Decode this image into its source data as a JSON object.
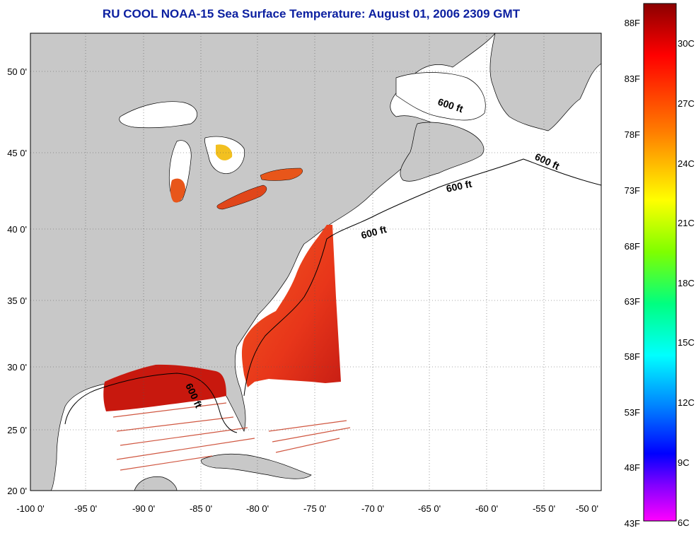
{
  "title": "RU COOL  NOAA-15  Sea Surface Temperature:  August 01, 2006 2309 GMT",
  "map": {
    "longitude_ticks": [
      "-100 0'",
      "-95 0'",
      "-90 0'",
      "-85 0'",
      "-80 0'",
      "-75 0'",
      "-70 0'",
      "-65 0'",
      "-60 0'",
      "-55 0'",
      "-50 0'"
    ],
    "latitude_ticks": [
      "20 0'",
      "25 0'",
      "30 0'",
      "35 0'",
      "40 0'",
      "45 0'",
      "50 0'"
    ],
    "isobath_labels": [
      "600 ft",
      "600 ft",
      "600 ft",
      "600 ft",
      "600 ft"
    ],
    "colors": {
      "land": "#c8c8c8",
      "water_no_data": "#ffffff",
      "warm_sst": "#e62a12",
      "hot_sst": "#b0100c"
    }
  },
  "colorbar": {
    "fahrenheit_ticks": [
      "88F",
      "83F",
      "78F",
      "73F",
      "68F",
      "63F",
      "58F",
      "53F",
      "48F",
      "43F"
    ],
    "celsius_ticks": [
      "30C",
      "27C",
      "24C",
      "21C",
      "18C",
      "15C",
      "12C",
      "9C",
      "6C"
    ],
    "gradient_colors": [
      "#8b0000",
      "#ff0000",
      "#ff7f00",
      "#ffff00",
      "#7fff00",
      "#00ff80",
      "#00ffff",
      "#0080ff",
      "#0000ff",
      "#8000ff",
      "#ff00ff"
    ]
  }
}
